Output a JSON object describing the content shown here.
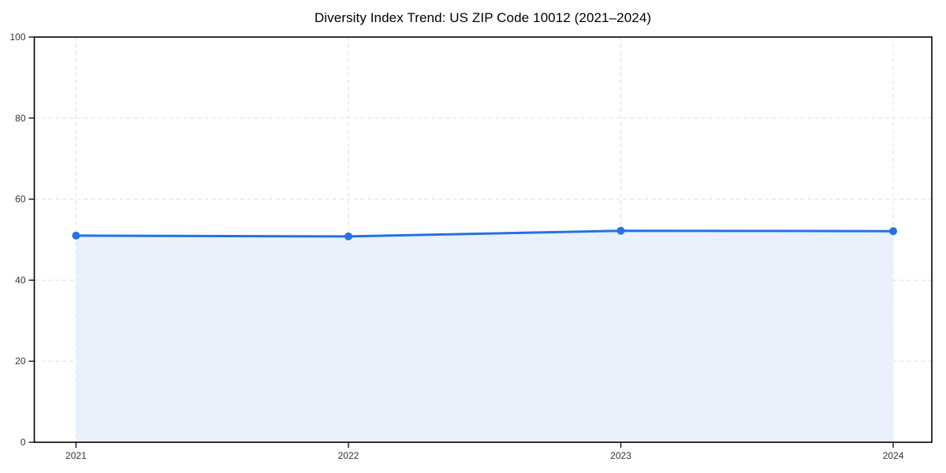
{
  "chart_data": {
    "type": "line",
    "subtype": "area-filled line with circle markers",
    "title": "Diversity Index Trend: US ZIP Code 10012 (2021–2024)",
    "xlabel": "",
    "ylabel": "",
    "categories": [
      "2021",
      "2022",
      "2023",
      "2024"
    ],
    "series": [
      {
        "name": "Diversity Index",
        "values": [
          51.0,
          50.8,
          52.2,
          52.1
        ]
      }
    ],
    "ylim": [
      0,
      100
    ],
    "yticks": [
      0,
      20,
      40,
      60,
      80,
      100
    ],
    "grid": "dashed gridlines on both axes",
    "legend": "none",
    "colors": {
      "line": "#2671e3",
      "marker": "#2671e3",
      "area_fill": "#e9f1fc",
      "grid": "#dedede",
      "spine": "#000000",
      "tick_label": "#333333",
      "title": "#000000",
      "background": "#ffffff"
    }
  }
}
